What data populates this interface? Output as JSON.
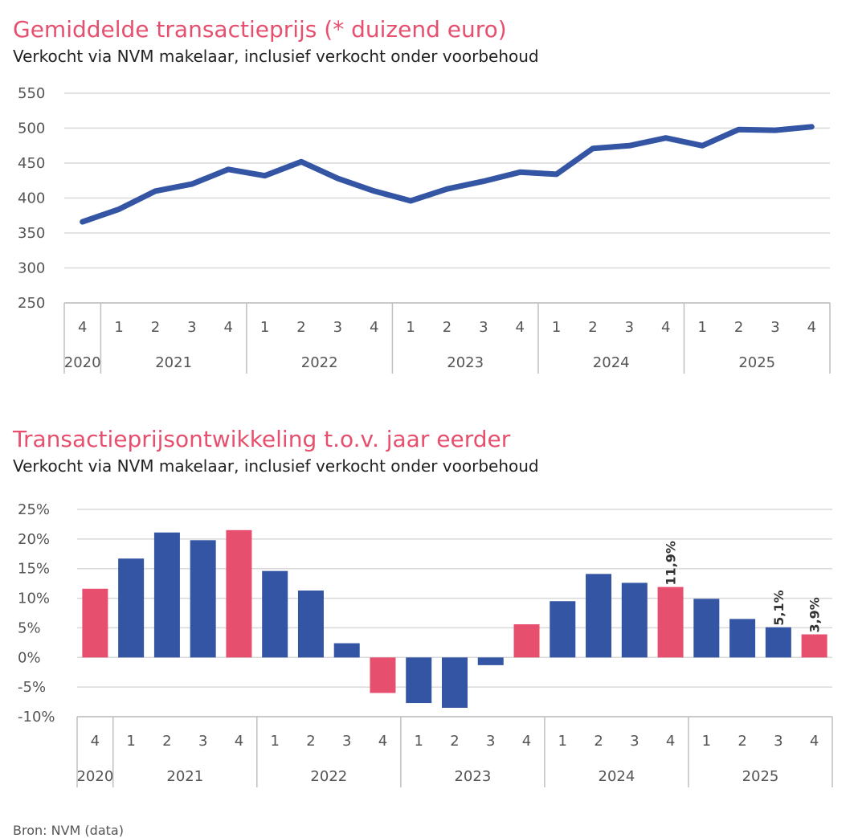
{
  "colors": {
    "accent": "#e6506e",
    "blue": "#3355a3",
    "grid": "#d9d9d9",
    "axis": "#bfbfbf",
    "text": "#222222",
    "tick": "#555555"
  },
  "chart_data": [
    {
      "type": "line",
      "title": "Gemiddelde transactieprijs (* duizend euro)",
      "subtitle": "Verkocht via NVM makelaar, inclusief verkocht onder voorbehoud",
      "ylim": [
        250,
        550
      ],
      "yticks": [
        "550",
        "500",
        "450",
        "400",
        "350",
        "300",
        "250"
      ],
      "ytick_values": [
        550,
        500,
        450,
        400,
        350,
        300,
        250
      ],
      "quarters": [
        "4",
        "1",
        "2",
        "3",
        "4",
        "1",
        "2",
        "3",
        "4",
        "1",
        "2",
        "3",
        "4",
        "1",
        "2",
        "3",
        "4",
        "1",
        "2",
        "3",
        "4"
      ],
      "years": [
        "2020",
        "2021",
        "2022",
        "2023",
        "2024",
        "2025"
      ],
      "year_spans": [
        1,
        4,
        4,
        4,
        4,
        4
      ],
      "series": [
        {
          "name": "Gemiddelde transactieprijs",
          "values": [
            366,
            384,
            410,
            420,
            441,
            432,
            452,
            428,
            410,
            396,
            413,
            424,
            437,
            434,
            471,
            475,
            486,
            475,
            498,
            497,
            502
          ]
        }
      ]
    },
    {
      "type": "bar",
      "title": "Transactieprijsontwikkeling t.o.v. jaar eerder",
      "subtitle": "Verkocht via NVM makelaar, inclusief verkocht onder voorbehoud",
      "ylim": [
        -10,
        25
      ],
      "yticks": [
        "25%",
        "20%",
        "15%",
        "10%",
        "5%",
        "0%",
        "-5%",
        "-10%"
      ],
      "ytick_values": [
        25,
        20,
        15,
        10,
        5,
        0,
        -5,
        -10
      ],
      "quarters": [
        "4",
        "1",
        "2",
        "3",
        "4",
        "1",
        "2",
        "3",
        "4",
        "1",
        "2",
        "3",
        "4",
        "1",
        "2",
        "3",
        "4",
        "1",
        "2",
        "3",
        "4"
      ],
      "years": [
        "2020",
        "2021",
        "2022",
        "2023",
        "2024",
        "2025"
      ],
      "year_spans": [
        1,
        4,
        4,
        4,
        4,
        4
      ],
      "values": [
        11.6,
        16.7,
        21.1,
        19.8,
        21.5,
        14.6,
        11.3,
        2.4,
        -6.0,
        -7.7,
        -8.5,
        -1.3,
        5.6,
        9.5,
        14.1,
        12.6,
        11.9,
        9.9,
        6.5,
        5.1,
        3.9
      ],
      "highlight": [
        true,
        false,
        false,
        false,
        true,
        false,
        false,
        false,
        true,
        false,
        false,
        false,
        true,
        false,
        false,
        false,
        true,
        false,
        false,
        false,
        true
      ],
      "data_labels": [
        {
          "index": 16,
          "text": "11,9%"
        },
        {
          "index": 19,
          "text": "5,1%"
        },
        {
          "index": 20,
          "text": "3,9%"
        }
      ]
    }
  ],
  "footer": "Bron: NVM (data)"
}
